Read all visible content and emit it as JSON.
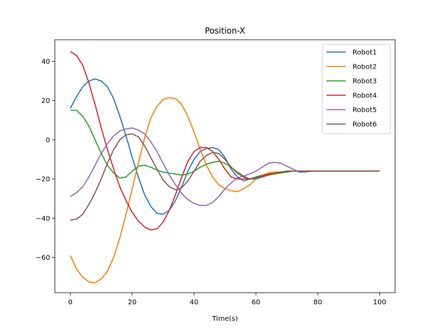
{
  "chart_data": {
    "type": "line",
    "title": "Position-X",
    "xlabel": "Time(s)",
    "ylabel": "",
    "xlim": [
      -5,
      105
    ],
    "ylim": [
      -78,
      51
    ],
    "xticks": [
      0,
      20,
      40,
      60,
      80,
      100
    ],
    "yticks": [
      -60,
      -40,
      -20,
      0,
      20,
      40
    ],
    "grid": false,
    "legend_position": "top-right",
    "x": [
      0,
      2,
      4,
      6,
      8,
      10,
      12,
      14,
      16,
      18,
      20,
      22,
      24,
      26,
      28,
      30,
      32,
      34,
      36,
      38,
      40,
      42,
      44,
      46,
      48,
      50,
      52,
      54,
      56,
      58,
      60,
      62,
      64,
      66,
      68,
      70,
      72,
      74,
      76,
      78,
      80,
      82,
      84,
      86,
      88,
      90,
      92,
      94,
      96,
      98,
      100
    ],
    "series": [
      {
        "name": "Robot1",
        "color": "#1f77b4",
        "values": [
          16,
          22,
          27,
          30,
          31,
          30,
          27,
          21,
          12,
          2,
          -9,
          -19,
          -28,
          -34,
          -37.5,
          -38,
          -36,
          -31,
          -24,
          -16,
          -10,
          -6,
          -4.5,
          -4,
          -5,
          -9,
          -15,
          -19,
          -21,
          -20,
          -19,
          -18,
          -17,
          -17,
          -16.5,
          -16,
          -16,
          -16,
          -16,
          -16,
          -16,
          -16,
          -16,
          -16,
          -16,
          -16,
          -16,
          -16,
          -16,
          -16,
          -16
        ]
      },
      {
        "name": "Robot2",
        "color": "#ff7f0e",
        "values": [
          -59,
          -66,
          -70,
          -72.5,
          -73,
          -71,
          -67,
          -60,
          -50,
          -38,
          -25,
          -12,
          1,
          11,
          17,
          20.5,
          21.5,
          21,
          18,
          12,
          4,
          -5,
          -13,
          -19,
          -23,
          -25,
          -26,
          -26.5,
          -25,
          -23,
          -20,
          -18,
          -17,
          -16.5,
          -16.5,
          -16,
          -16,
          -16,
          -16,
          -16,
          -16,
          -16,
          -16,
          -16,
          -16,
          -16,
          -16,
          -16,
          -16,
          -16,
          -16
        ]
      },
      {
        "name": "Robot3",
        "color": "#2ca02c",
        "values": [
          15,
          15,
          12,
          7,
          0,
          -7,
          -13,
          -17,
          -19.5,
          -19,
          -16,
          -13.5,
          -13,
          -14,
          -15.5,
          -16.5,
          -17,
          -17.5,
          -18,
          -17.5,
          -16,
          -14,
          -12.5,
          -11.5,
          -11,
          -12,
          -14,
          -16.5,
          -18.5,
          -20,
          -20,
          -19,
          -18,
          -17.5,
          -17,
          -16.5,
          -16,
          -16,
          -16,
          -16,
          -16,
          -16,
          -16,
          -16,
          -16,
          -16,
          -16,
          -16,
          -16,
          -16,
          -16
        ]
      },
      {
        "name": "Robot4",
        "color": "#d62728",
        "values": [
          45,
          43,
          38,
          29,
          18,
          6,
          -5,
          -15,
          -24,
          -31,
          -37,
          -41.5,
          -44.5,
          -46,
          -45.5,
          -42,
          -36,
          -28,
          -19,
          -11,
          -6,
          -4,
          -4,
          -6,
          -10,
          -15,
          -19,
          -20,
          -20,
          -20,
          -19.5,
          -19,
          -18,
          -17,
          -16.5,
          -16,
          -16,
          -16,
          -16,
          -16,
          -16,
          -16,
          -16,
          -16,
          -16,
          -16,
          -16,
          -16,
          -16,
          -16,
          -16
        ]
      },
      {
        "name": "Robot5",
        "color": "#9467bd",
        "values": [
          -29,
          -27,
          -24,
          -19,
          -13,
          -7,
          -2,
          2,
          4.5,
          5.5,
          6,
          5,
          3,
          -1,
          -6,
          -12,
          -18,
          -23,
          -27.5,
          -30.5,
          -32.5,
          -33.5,
          -33.5,
          -32,
          -29,
          -25,
          -22,
          -19.5,
          -18.5,
          -17.5,
          -16,
          -14,
          -12,
          -11.5,
          -12,
          -13.5,
          -15,
          -16.5,
          -16.5,
          -16,
          -16,
          -16,
          -16,
          -16,
          -16,
          -16,
          -16,
          -16,
          -16,
          -16,
          -16
        ]
      },
      {
        "name": "Robot6",
        "color": "#8c564b",
        "values": [
          -41,
          -40.5,
          -38,
          -33,
          -27,
          -20,
          -12,
          -5,
          0,
          2.5,
          3,
          1.5,
          -3,
          -9,
          -15,
          -20.5,
          -24,
          -25.5,
          -24.5,
          -21,
          -16,
          -11,
          -8,
          -6.5,
          -7,
          -10,
          -14,
          -17,
          -19,
          -20,
          -19.5,
          -18.5,
          -17.5,
          -17,
          -16.5,
          -16,
          -16,
          -16,
          -16,
          -16,
          -16,
          -16,
          -16,
          -16,
          -16,
          -16,
          -16,
          -16,
          -16,
          -16,
          -16
        ]
      }
    ]
  }
}
